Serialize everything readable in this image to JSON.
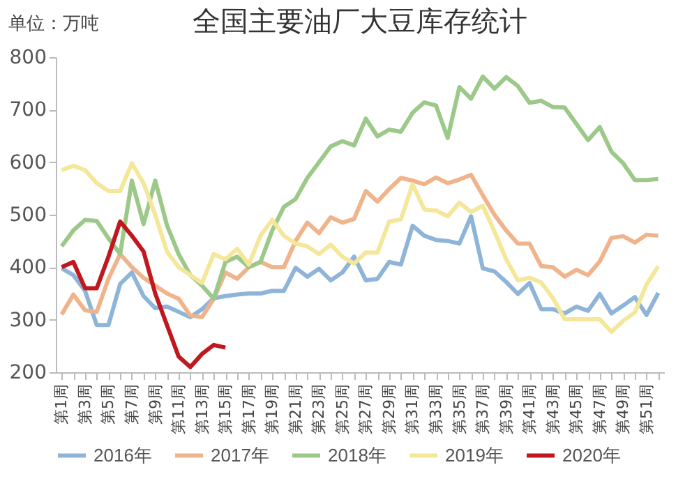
{
  "chart_data": {
    "type": "line",
    "title": "全国主要油厂大豆库存统计",
    "annotations": [
      "单位：万吨"
    ],
    "categories": [
      "第1周",
      null,
      "第3周",
      null,
      "第5周",
      null,
      "第7周",
      null,
      "第9周",
      null,
      "第11周",
      null,
      "第13周",
      null,
      "第15周",
      null,
      "第17周",
      null,
      "第19周",
      null,
      "第21周",
      null,
      "第23周",
      null,
      "第25周",
      null,
      "第27周",
      null,
      "第29周",
      null,
      "第31周",
      null,
      "第33周",
      null,
      "第35周",
      null,
      "第37周",
      null,
      "第39周",
      null,
      "第41周",
      null,
      "第43周",
      null,
      "第45周",
      null,
      "第47周",
      null,
      "第49周",
      null,
      "第51周",
      null
    ],
    "ylim": [
      200,
      800
    ],
    "yticks": [
      200,
      300,
      400,
      500,
      600,
      700,
      800
    ],
    "grid": false,
    "legend": "bottom",
    "series": [
      {
        "name": "2016年",
        "color": "#8fb4d9",
        "values": [
          398,
          385,
          355,
          290,
          290,
          368,
          390,
          345,
          322,
          325,
          315,
          305,
          320,
          341,
          345,
          348,
          350,
          350,
          355,
          355,
          399,
          382,
          397,
          375,
          390,
          420,
          375,
          378,
          410,
          405,
          479,
          460,
          452,
          450,
          445,
          497,
          398,
          392,
          372,
          349,
          370,
          320,
          320,
          312,
          325,
          317,
          349,
          312,
          327,
          343,
          309,
          351
        ]
      },
      {
        "name": "2017年",
        "color": "#f0b48c",
        "values": [
          310,
          348,
          318,
          315,
          378,
          425,
          400,
          380,
          365,
          350,
          340,
          308,
          305,
          340,
          390,
          378,
          400,
          410,
          400,
          400,
          450,
          485,
          465,
          495,
          485,
          492,
          545,
          525,
          549,
          570,
          565,
          558,
          571,
          560,
          567,
          576,
          537,
          500,
          470,
          445,
          445,
          402,
          400,
          382,
          395,
          385,
          411,
          456,
          459,
          447,
          462,
          460
        ]
      },
      {
        "name": "2018年",
        "color": "#9cc98a",
        "values": [
          440,
          470,
          490,
          488,
          455,
          425,
          565,
          482,
          565,
          480,
          425,
          385,
          365,
          340,
          410,
          420,
          400,
          410,
          470,
          515,
          530,
          570,
          600,
          630,
          640,
          632,
          683,
          649,
          662,
          658,
          694,
          714,
          708,
          646,
          743,
          721,
          763,
          740,
          762,
          745,
          713,
          717,
          705,
          704,
          673,
          642,
          667,
          620,
          598,
          566,
          566,
          568
        ]
      },
      {
        "name": "2019年",
        "color": "#f5e79a",
        "values": [
          585,
          593,
          585,
          560,
          545,
          545,
          598,
          560,
          500,
          430,
          400,
          385,
          370,
          425,
          415,
          435,
          405,
          460,
          490,
          460,
          445,
          440,
          425,
          443,
          420,
          407,
          428,
          428,
          487,
          491,
          558,
          510,
          508,
          497,
          523,
          505,
          517,
          468,
          415,
          375,
          380,
          371,
          341,
          301,
          301,
          301,
          301,
          277,
          298,
          314,
          367,
          402
        ]
      },
      {
        "name": "2020年",
        "color": "#c0181f",
        "values": [
          400,
          410,
          360,
          360,
          420,
          487,
          460,
          430,
          350,
          290,
          230,
          210,
          235,
          252,
          247,
          null,
          null,
          null,
          null,
          null,
          null,
          null,
          null,
          null,
          null,
          null,
          null,
          null,
          null,
          null,
          null,
          null,
          null,
          null,
          null,
          null,
          null,
          null,
          null,
          null,
          null,
          null,
          null,
          null,
          null,
          null,
          null,
          null,
          null,
          null,
          null,
          null
        ]
      }
    ]
  }
}
